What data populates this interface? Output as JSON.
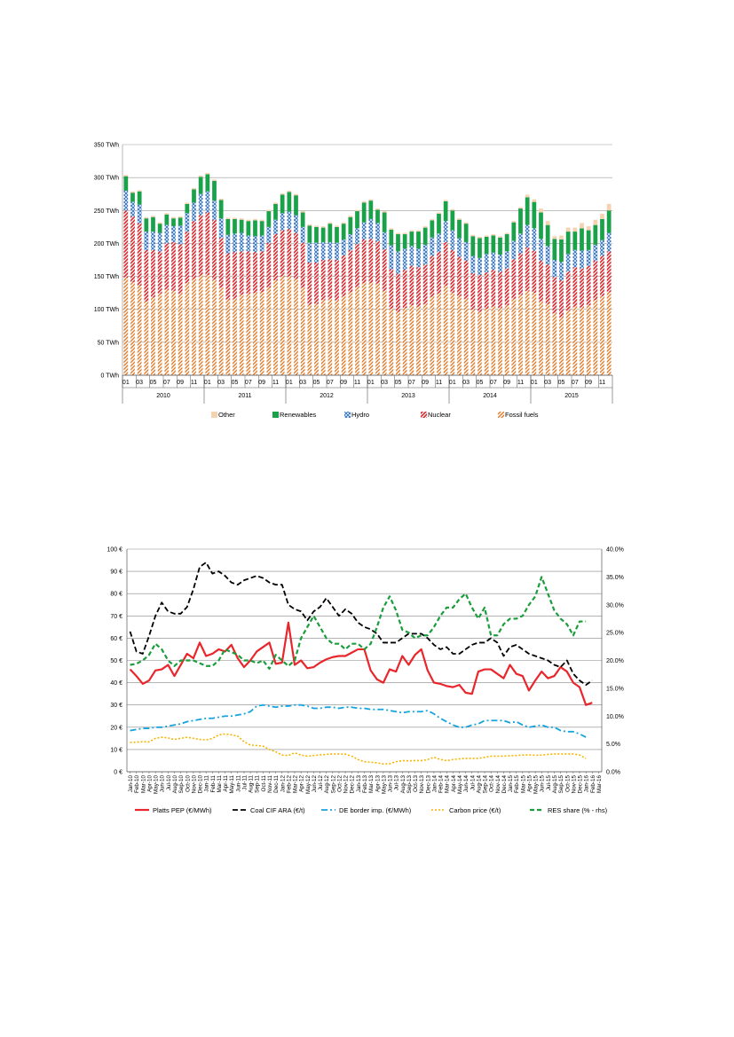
{
  "chart_data": [
    {
      "type": "bar",
      "stacked": true,
      "title": "",
      "ylabel": "",
      "ylim": [
        0,
        350
      ],
      "yticks": [
        "0 TWh",
        "50 TWh",
        "100 TWh",
        "150 TWh",
        "200 TWh",
        "250 TWh",
        "300 TWh",
        "350 TWh"
      ],
      "ytick_values": [
        0,
        50,
        100,
        150,
        200,
        250,
        300,
        350
      ],
      "grid": true,
      "legend_position": "bottom",
      "years": [
        "2010",
        "2011",
        "2012",
        "2013",
        "2014",
        "2015"
      ],
      "month_labels": [
        "01",
        "03",
        "05",
        "07",
        "09",
        "11"
      ],
      "x_start": "2010-01",
      "x_count": 72,
      "colors": {
        "Other": "#f5d3b0",
        "Renewables": "#19a24a",
        "Hydro": "#3a78c4",
        "Nuclear": "#d9262c",
        "Fossil fuels": "#e07b2a"
      },
      "series": [
        {
          "name": "Fossil fuels",
          "values": [
            148,
            141,
            136,
            112,
            118,
            124,
            130,
            128,
            124,
            140,
            146,
            151,
            152,
            145,
            133,
            115,
            116,
            122,
            124,
            125,
            126,
            133,
            144,
            150,
            150,
            146,
            133,
            107,
            108,
            114,
            116,
            114,
            120,
            126,
            134,
            140,
            140,
            139,
            128,
            101,
            96,
            102,
            106,
            104,
            108,
            119,
            124,
            136,
            125,
            120,
            116,
            100,
            96,
            101,
            104,
            102,
            106,
            116,
            122,
            128,
            125,
            112,
            108,
            94,
            88,
            98,
            104,
            103,
            106,
            114,
            120,
            126
          ]
        },
        {
          "name": "Nuclear",
          "values": [
            102,
            100,
            95,
            78,
            72,
            64,
            70,
            74,
            75,
            78,
            88,
            92,
            95,
            91,
            75,
            70,
            71,
            66,
            64,
            62,
            62,
            68,
            70,
            70,
            72,
            70,
            68,
            64,
            63,
            61,
            60,
            61,
            62,
            64,
            65,
            66,
            67,
            64,
            63,
            60,
            58,
            58,
            60,
            60,
            60,
            62,
            63,
            66,
            65,
            60,
            58,
            55,
            56,
            55,
            56,
            55,
            56,
            60,
            63,
            66,
            64,
            62,
            60,
            55,
            56,
            59,
            60,
            59,
            60,
            60,
            61,
            62
          ]
        },
        {
          "name": "Hydro",
          "values": [
            30,
            22,
            28,
            28,
            28,
            28,
            28,
            24,
            28,
            28,
            28,
            32,
            32,
            29,
            30,
            28,
            28,
            28,
            24,
            24,
            24,
            24,
            22,
            26,
            26,
            27,
            24,
            30,
            30,
            27,
            26,
            26,
            24,
            24,
            24,
            26,
            30,
            28,
            26,
            36,
            34,
            32,
            30,
            28,
            30,
            28,
            28,
            32,
            30,
            28,
            28,
            26,
            26,
            28,
            26,
            26,
            26,
            28,
            30,
            34,
            34,
            33,
            28,
            26,
            28,
            27,
            26,
            27,
            24,
            24,
            24,
            28
          ]
        },
        {
          "name": "Renewables",
          "values": [
            22,
            14,
            20,
            20,
            22,
            14,
            16,
            12,
            12,
            14,
            20,
            26,
            26,
            30,
            28,
            24,
            22,
            20,
            22,
            24,
            22,
            24,
            24,
            28,
            30,
            30,
            22,
            26,
            24,
            22,
            28,
            24,
            24,
            26,
            26,
            30,
            28,
            20,
            30,
            24,
            26,
            22,
            22,
            26,
            26,
            26,
            30,
            30,
            30,
            28,
            28,
            30,
            30,
            26,
            26,
            26,
            26,
            28,
            38,
            42,
            40,
            40,
            32,
            32,
            34,
            34,
            28,
            34,
            30,
            30,
            32,
            34
          ]
        },
        {
          "name": "Other",
          "values": [
            2,
            2,
            2,
            2,
            2,
            2,
            2,
            2,
            2,
            2,
            2,
            2,
            2,
            2,
            2,
            2,
            2,
            2,
            2,
            2,
            2,
            2,
            2,
            2,
            2,
            2,
            2,
            2,
            2,
            2,
            2,
            2,
            2,
            2,
            2,
            2,
            2,
            2,
            2,
            2,
            2,
            2,
            2,
            2,
            2,
            2,
            2,
            2,
            2,
            2,
            2,
            2,
            2,
            2,
            2,
            2,
            2,
            2,
            2,
            4,
            4,
            6,
            6,
            4,
            6,
            6,
            6,
            8,
            6,
            8,
            8,
            10
          ]
        }
      ]
    },
    {
      "type": "line",
      "title": "",
      "ylim": [
        0,
        100
      ],
      "y2lim": [
        0,
        40
      ],
      "yticks": [
        "0 €",
        "10 €",
        "20 €",
        "30 €",
        "40 €",
        "50 €",
        "60 €",
        "70 €",
        "80 €",
        "90 €",
        "100 €"
      ],
      "y2ticks": [
        "0.0%",
        "5.0%",
        "10.0%",
        "15.0%",
        "20.0%",
        "25.0%",
        "30.0%",
        "35.0%",
        "40.0%"
      ],
      "categories": [
        "Jan-10",
        "Feb-10",
        "Mar-10",
        "Apr-10",
        "May-10",
        "Jun-10",
        "Jul-10",
        "Aug-10",
        "Sep-10",
        "Oct-10",
        "Nov-10",
        "Dec-10",
        "Jan-11",
        "Feb-11",
        "Mar-11",
        "Apr-11",
        "May-11",
        "Jun-11",
        "Jul-11",
        "Aug-11",
        "Sep-11",
        "Oct-11",
        "Nov-11",
        "Dec-11",
        "Jan-12",
        "Feb-12",
        "Mar-12",
        "Apr-12",
        "May-12",
        "Jun-12",
        "Jul-12",
        "Aug-12",
        "Sep-12",
        "Oct-12",
        "Nov-12",
        "Dec-12",
        "Jan-13",
        "Feb-13",
        "Mar-13",
        "Apr-13",
        "May-13",
        "Jun-13",
        "Jul-13",
        "Aug-13",
        "Sep-13",
        "Oct-13",
        "Nov-13",
        "Dec-13",
        "Jan-14",
        "Feb-14",
        "Mar-14",
        "Apr-14",
        "May-14",
        "Jun-14",
        "Jul-14",
        "Aug-14",
        "Sep-14",
        "Oct-14",
        "Nov-14",
        "Dec-14",
        "Jan-15",
        "Feb-15",
        "Mar-15",
        "Apr-15",
        "May-15",
        "Jun-15",
        "Jul-15",
        "Aug-15",
        "Sep-15",
        "Oct-15",
        "Nov-15",
        "Dec-15",
        "Jan-16",
        "Feb-16",
        "Mar-16"
      ],
      "grid": true,
      "legend_position": "bottom",
      "series": [
        {
          "name": "Platts PEP (€/MWh)",
          "axis": "left",
          "color": "#e8262b",
          "dash": "",
          "width": 2.2,
          "values": [
            46,
            43,
            39.5,
            41,
            45.5,
            46,
            48,
            43,
            48,
            53,
            51,
            58,
            52,
            53,
            55,
            54,
            57,
            51,
            47,
            50,
            54,
            56,
            58,
            48.5,
            49,
            67,
            48,
            50,
            46.5,
            47,
            49,
            50.5,
            51.5,
            52,
            52,
            53.5,
            55,
            55,
            45.5,
            41.5,
            40,
            46,
            45,
            52,
            48,
            52.5,
            55,
            45.5,
            40,
            39.5,
            38.5,
            38,
            39,
            35.5,
            35,
            45,
            46,
            46,
            44,
            42,
            48,
            44,
            43,
            36.5,
            41,
            45,
            42,
            43,
            47,
            45,
            40,
            38,
            30,
            31,
            null
          ]
        },
        {
          "name": "Coal CIF ARA (€/t)",
          "axis": "left",
          "color": "#000000",
          "dash": "6,3",
          "width": 1.8,
          "values": [
            63,
            54,
            53,
            61,
            70,
            76,
            72,
            71,
            71,
            74,
            82,
            92,
            94,
            89,
            90,
            88,
            85,
            84,
            86,
            87,
            88,
            87,
            85,
            84,
            84,
            75,
            73,
            72,
            68,
            72,
            74,
            78,
            74,
            70,
            73,
            71,
            67,
            65,
            64,
            62,
            58,
            58,
            58,
            60,
            62,
            62,
            62,
            60,
            57,
            55,
            56,
            53,
            53,
            55,
            57,
            58,
            58,
            60,
            58,
            52,
            56,
            57,
            55,
            53,
            52,
            51,
            50,
            48,
            47,
            50,
            44,
            41,
            39,
            41,
            null
          ]
        },
        {
          "name": "DE border imp. (€/MWh)",
          "axis": "left",
          "color": "#17a3e0",
          "dash": "7,3,2,3",
          "width": 1.8,
          "values": [
            18.5,
            19,
            19.5,
            19.5,
            20,
            20,
            20.5,
            21,
            21.5,
            22.5,
            23,
            23.5,
            24,
            24,
            24.5,
            25,
            25,
            25.5,
            26,
            27,
            29.5,
            30,
            29.5,
            29,
            29.5,
            29.5,
            30,
            30,
            29.5,
            28.5,
            28.5,
            29,
            29,
            28.5,
            29,
            29,
            28.5,
            28.5,
            28,
            28,
            28,
            27.5,
            27,
            26.5,
            27,
            27,
            27,
            27.5,
            26,
            24,
            22.5,
            21,
            20,
            20,
            21,
            21.5,
            23,
            23,
            23,
            23,
            22,
            22.5,
            21,
            20,
            20.5,
            21,
            20,
            20,
            18.5,
            18,
            18,
            17,
            15.5,
            null,
            null
          ]
        },
        {
          "name": "Carbon price (€/t)",
          "axis": "left",
          "color": "#f5b400",
          "dash": "2,2",
          "width": 1.6,
          "values": [
            13.2,
            13.3,
            13.5,
            13.4,
            15,
            15.5,
            15.2,
            14.5,
            15,
            15.5,
            15,
            14.5,
            14.3,
            15,
            16.5,
            17,
            16.6,
            16,
            13.5,
            12,
            11.8,
            11.5,
            10,
            9,
            7.5,
            7.3,
            8.5,
            7.5,
            7,
            7.3,
            7.6,
            7.8,
            8,
            8,
            7.9,
            7,
            5.5,
            4.5,
            4.3,
            4,
            3.5,
            3.6,
            4.5,
            5,
            4.9,
            5,
            5,
            5.5,
            6.5,
            5.5,
            5,
            5.5,
            5.8,
            6,
            6,
            6,
            6.5,
            7,
            7,
            7,
            7.2,
            7.3,
            7.5,
            7.6,
            7.4,
            7.5,
            7.8,
            8,
            8,
            8,
            8,
            7.5,
            6,
            null,
            null
          ]
        },
        {
          "name": "RES share (% - rhs)",
          "axis": "right",
          "color": "#1a9e3c",
          "dash": "5,3",
          "width": 2.2,
          "values": [
            19.2,
            19.4,
            20,
            21,
            23,
            22,
            20,
            19,
            20,
            20,
            20,
            19.5,
            19,
            19,
            20,
            22,
            21.5,
            21,
            20,
            20,
            19.5,
            20,
            18.5,
            21,
            20,
            19,
            20,
            24,
            26,
            28,
            26,
            24,
            23,
            23,
            22,
            23,
            23,
            22,
            23,
            26,
            29.5,
            31.5,
            29,
            25.5,
            25,
            24,
            24.5,
            24.5,
            26,
            28,
            29.5,
            29.5,
            31,
            32,
            29.5,
            27.5,
            29.5,
            24.5,
            24.5,
            26.5,
            27.5,
            27.5,
            28,
            30,
            31.5,
            35,
            32,
            29,
            27.5,
            26.5,
            24.5,
            27,
            27,
            null,
            null
          ]
        }
      ]
    }
  ]
}
